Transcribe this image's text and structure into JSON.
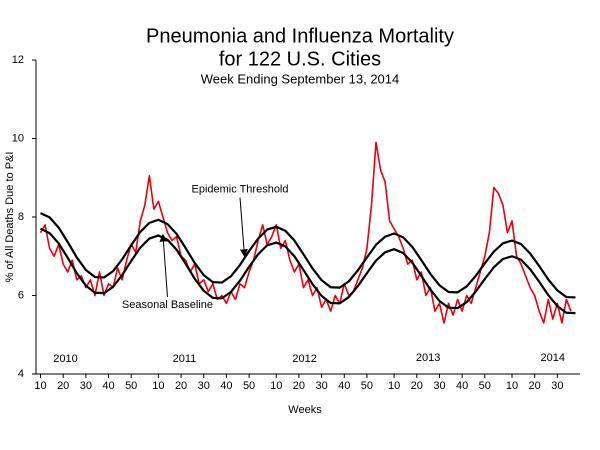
{
  "chart_data": {
    "type": "line",
    "title": [
      "Pneumonia and Influenza Mortality",
      "for 122 U.S. Cities"
    ],
    "subtitle": "Week Ending  September 13, 2014",
    "xlabel": "Weeks",
    "ylabel": "% of All Deaths Due to P&I",
    "xlim": [
      8,
      248
    ],
    "ylim": [
      4,
      12
    ],
    "yticks": [
      4,
      6,
      8,
      10,
      12
    ],
    "xticks": [
      10,
      20,
      30,
      40,
      50,
      {
        "value": 62,
        "label": "10"
      },
      {
        "value": 72,
        "label": "20"
      },
      {
        "value": 82,
        "label": "30"
      },
      {
        "value": 92,
        "label": "40"
      },
      {
        "value": 102,
        "label": "50"
      },
      {
        "value": 114,
        "label": "10"
      },
      {
        "value": 124,
        "label": "20"
      },
      {
        "value": 134,
        "label": "30"
      },
      {
        "value": 144,
        "label": "40"
      },
      {
        "value": 154,
        "label": "50"
      },
      {
        "value": 166,
        "label": "10"
      },
      {
        "value": 176,
        "label": "20"
      },
      {
        "value": 186,
        "label": "30"
      },
      {
        "value": 196,
        "label": "40"
      },
      {
        "value": 206,
        "label": "50"
      },
      {
        "value": 218,
        "label": "10"
      },
      {
        "value": 228,
        "label": "20"
      },
      {
        "value": 238,
        "label": "30"
      }
    ],
    "grid": false,
    "series": [
      {
        "color": "#e8000b",
        "x": [
          10,
          12,
          14,
          16,
          18,
          20,
          22,
          24,
          26,
          28,
          30,
          32,
          34,
          36,
          38,
          40,
          42,
          44,
          46,
          48,
          50,
          52,
          54,
          56,
          58,
          60,
          62,
          64,
          66,
          68,
          70,
          72,
          74,
          76,
          78,
          80,
          82,
          84,
          86,
          88,
          90,
          92,
          94,
          96,
          98,
          100,
          102,
          104,
          106,
          108,
          110,
          112,
          114,
          116,
          118,
          120,
          122,
          124,
          126,
          128,
          130,
          132,
          134,
          136,
          138,
          140,
          142,
          144,
          146,
          148,
          150,
          152,
          154,
          156,
          158,
          160,
          162,
          164,
          166,
          168,
          170,
          172,
          174,
          176,
          178,
          180,
          182,
          184,
          186,
          188,
          190,
          192,
          194,
          196,
          198,
          200,
          202,
          204,
          206,
          208,
          210,
          212,
          214,
          216,
          218,
          220,
          222,
          224,
          226,
          228,
          230,
          232,
          234,
          236,
          238,
          240,
          242,
          244
        ],
        "values": [
          7.6,
          7.8,
          7.2,
          7.0,
          7.3,
          6.8,
          6.6,
          6.9,
          6.4,
          6.5,
          6.2,
          6.4,
          6.0,
          6.6,
          6.0,
          6.3,
          6.2,
          6.7,
          6.4,
          6.9,
          7.3,
          7.1,
          7.9,
          8.3,
          9.05,
          8.2,
          8.4,
          8.0,
          7.6,
          7.4,
          7.5,
          7.0,
          6.9,
          6.6,
          6.8,
          6.3,
          6.4,
          6.1,
          6.3,
          5.9,
          6.0,
          5.8,
          6.1,
          5.9,
          6.3,
          6.2,
          6.6,
          6.9,
          7.4,
          7.8,
          7.3,
          7.5,
          7.8,
          7.2,
          7.4,
          6.9,
          6.6,
          6.8,
          6.2,
          6.4,
          6.0,
          6.2,
          5.7,
          5.9,
          5.6,
          6.0,
          5.8,
          6.3,
          6.0,
          6.1,
          6.4,
          6.7,
          7.2,
          8.3,
          9.9,
          9.2,
          8.9,
          7.9,
          7.7,
          7.5,
          7.2,
          6.8,
          6.9,
          6.4,
          6.6,
          6.0,
          6.2,
          5.6,
          5.8,
          5.3,
          5.8,
          5.5,
          5.9,
          5.6,
          6.0,
          5.8,
          6.2,
          6.6,
          7.0,
          7.6,
          8.75,
          8.6,
          8.3,
          7.6,
          7.9,
          7.0,
          6.8,
          6.5,
          6.2,
          6.0,
          5.6,
          5.3,
          5.9,
          5.4,
          5.8,
          5.3,
          5.9,
          5.6
        ]
      },
      {
        "color": "#000000",
        "x": [
          10,
          14,
          18,
          22,
          26,
          30,
          34,
          38,
          42,
          46,
          50,
          54,
          58,
          62,
          66,
          70,
          74,
          78,
          82,
          86,
          90,
          94,
          98,
          102,
          106,
          110,
          114,
          118,
          122,
          126,
          130,
          134,
          138,
          142,
          146,
          150,
          154,
          158,
          162,
          166,
          170,
          174,
          178,
          182,
          186,
          190,
          194,
          198,
          202,
          206,
          210,
          214,
          218,
          222,
          226,
          230,
          234,
          238,
          242,
          246
        ],
        "values": [
          7.7,
          7.59,
          7.33,
          6.96,
          6.57,
          6.25,
          6.07,
          6.06,
          6.22,
          6.52,
          6.88,
          7.22,
          7.45,
          7.53,
          7.42,
          7.17,
          6.81,
          6.43,
          6.12,
          5.94,
          5.93,
          6.09,
          6.38,
          6.73,
          7.05,
          7.28,
          7.35,
          7.25,
          7.0,
          6.65,
          6.29,
          5.99,
          5.81,
          5.8,
          5.96,
          6.24,
          6.57,
          6.89,
          7.1,
          7.18,
          7.08,
          6.84,
          6.5,
          6.15,
          5.86,
          5.69,
          5.68,
          5.83,
          6.1,
          6.42,
          6.72,
          6.93,
          7.0,
          6.91,
          6.67,
          6.35,
          6.01,
          5.73,
          5.56,
          5.55
        ]
      },
      {
        "color": "#000000",
        "x": [
          10,
          14,
          18,
          22,
          26,
          30,
          34,
          38,
          42,
          46,
          50,
          54,
          58,
          62,
          66,
          70,
          74,
          78,
          82,
          86,
          90,
          94,
          98,
          102,
          106,
          110,
          114,
          118,
          122,
          126,
          130,
          134,
          138,
          142,
          146,
          150,
          154,
          158,
          162,
          166,
          170,
          174,
          178,
          182,
          186,
          190,
          194,
          198,
          202,
          206,
          210,
          214,
          218,
          222,
          226,
          230,
          234,
          238,
          242,
          246
        ],
        "values": [
          8.1,
          7.99,
          7.73,
          7.36,
          6.97,
          6.65,
          6.47,
          6.46,
          6.62,
          6.92,
          7.28,
          7.62,
          7.85,
          7.93,
          7.82,
          7.57,
          7.21,
          6.83,
          6.52,
          6.34,
          6.33,
          6.49,
          6.78,
          7.13,
          7.45,
          7.68,
          7.75,
          7.65,
          7.4,
          7.05,
          6.69,
          6.39,
          6.21,
          6.2,
          6.36,
          6.64,
          6.97,
          7.29,
          7.5,
          7.58,
          7.48,
          7.24,
          6.9,
          6.55,
          6.26,
          6.09,
          6.08,
          6.23,
          6.5,
          6.82,
          7.12,
          7.33,
          7.4,
          7.31,
          7.07,
          6.75,
          6.41,
          6.13,
          5.96,
          5.95
        ]
      }
    ],
    "annotations": [
      {
        "text": "Epidemic Threshold",
        "x": 98,
        "y": 8.7,
        "arrow_x": 100,
        "arrow_y": 7.0
      },
      {
        "text": "Seasonal Baseline",
        "x": 66,
        "y": 5.76,
        "arrow_x": 64,
        "arrow_y": 7.55
      },
      {
        "text": "2010",
        "x": 21,
        "y": 4.38
      },
      {
        "text": "2011",
        "x": 73.5,
        "y": 4.38
      },
      {
        "text": "2012",
        "x": 126.5,
        "y": 4.38
      },
      {
        "text": "2013",
        "x": 181,
        "y": 4.4
      },
      {
        "text": "2014",
        "x": 236,
        "y": 4.4
      }
    ]
  }
}
